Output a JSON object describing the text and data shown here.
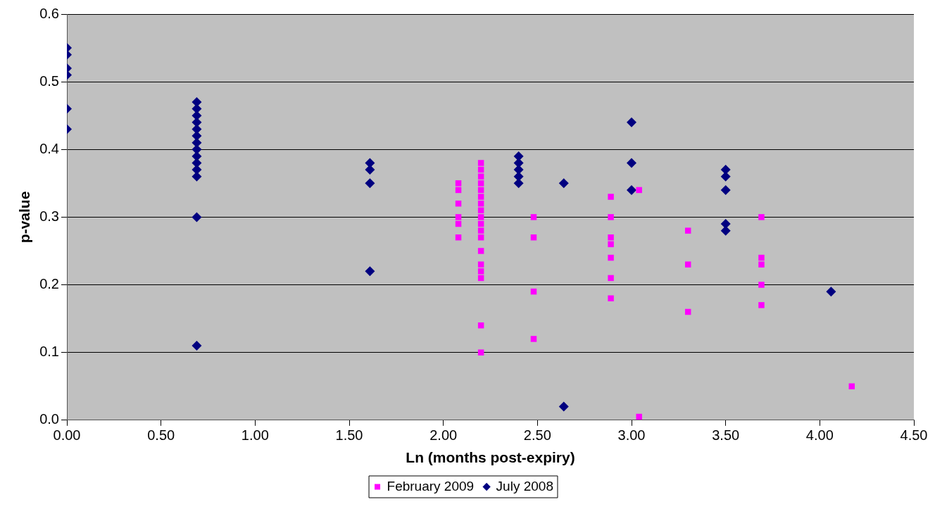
{
  "chart_data": {
    "type": "scatter",
    "xlabel": "Ln (months post-expiry)",
    "ylabel": "p-value",
    "xlim": [
      0,
      4.5
    ],
    "xticks": [
      {
        "value": 0,
        "label": "0.00"
      },
      {
        "value": 0.5,
        "label": "0.50"
      },
      {
        "value": 1,
        "label": "1.00"
      },
      {
        "value": 1.5,
        "label": "1.50"
      },
      {
        "value": 2,
        "label": "2.00"
      },
      {
        "value": 2.5,
        "label": "2.50"
      },
      {
        "value": 3,
        "label": "3.00"
      },
      {
        "value": 3.5,
        "label": "3.50"
      },
      {
        "value": 4,
        "label": "4.00"
      },
      {
        "value": 4.5,
        "label": "4.50"
      }
    ],
    "ylim": [
      0,
      0.6
    ],
    "yticks": [
      {
        "value": 0,
        "label": "0.0"
      },
      0.1,
      0.2,
      0.3,
      0.4,
      0.5,
      0.6
    ],
    "grid": "y",
    "legend": "bottom",
    "series": [
      {
        "name": "February 2009",
        "color": "#ff00ff",
        "marker": "square",
        "x": [
          2.08,
          2.08,
          2.08,
          2.08,
          2.08,
          2.08,
          2.2,
          2.2,
          2.2,
          2.2,
          2.2,
          2.2,
          2.2,
          2.2,
          2.2,
          2.2,
          2.2,
          2.2,
          2.2,
          2.2,
          2.2,
          2.2,
          2.2,
          2.2,
          2.48,
          2.48,
          2.48,
          2.48,
          2.89,
          2.89,
          2.89,
          2.89,
          2.89,
          2.89,
          2.89,
          3.04,
          3.04,
          3.3,
          3.3,
          3.3,
          3.69,
          3.69,
          3.69,
          3.69,
          3.69,
          4.17
        ],
        "values": [
          0.35,
          0.34,
          0.32,
          0.3,
          0.29,
          0.27,
          0.38,
          0.37,
          0.36,
          0.35,
          0.34,
          0.33,
          0.32,
          0.31,
          0.3,
          0.29,
          0.28,
          0.27,
          0.25,
          0.23,
          0.22,
          0.21,
          0.14,
          0.1,
          0.3,
          0.27,
          0.19,
          0.12,
          0.33,
          0.3,
          0.27,
          0.26,
          0.24,
          0.21,
          0.18,
          0.34,
          0.005,
          0.28,
          0.23,
          0.16,
          0.3,
          0.24,
          0.23,
          0.2,
          0.17,
          0.05
        ]
      },
      {
        "name": "July 2008",
        "color": "#000080",
        "marker": "diamond",
        "x": [
          0,
          0,
          0,
          0,
          0,
          0,
          0.69,
          0.69,
          0.69,
          0.69,
          0.69,
          0.69,
          0.69,
          0.69,
          0.69,
          0.69,
          0.69,
          0.69,
          0.69,
          0.69,
          1.61,
          1.61,
          1.61,
          1.61,
          2.4,
          2.4,
          2.4,
          2.4,
          2.4,
          2.64,
          2.64,
          3.0,
          3.0,
          3.0,
          3.5,
          3.5,
          3.5,
          3.5,
          3.5,
          4.06
        ],
        "values": [
          0.55,
          0.54,
          0.52,
          0.51,
          0.46,
          0.43,
          0.47,
          0.46,
          0.45,
          0.44,
          0.43,
          0.42,
          0.41,
          0.4,
          0.39,
          0.38,
          0.37,
          0.36,
          0.3,
          0.11,
          0.38,
          0.37,
          0.35,
          0.22,
          0.39,
          0.38,
          0.37,
          0.36,
          0.35,
          0.35,
          0.02,
          0.44,
          0.38,
          0.34,
          0.37,
          0.36,
          0.34,
          0.29,
          0.28,
          0.19
        ]
      }
    ]
  }
}
